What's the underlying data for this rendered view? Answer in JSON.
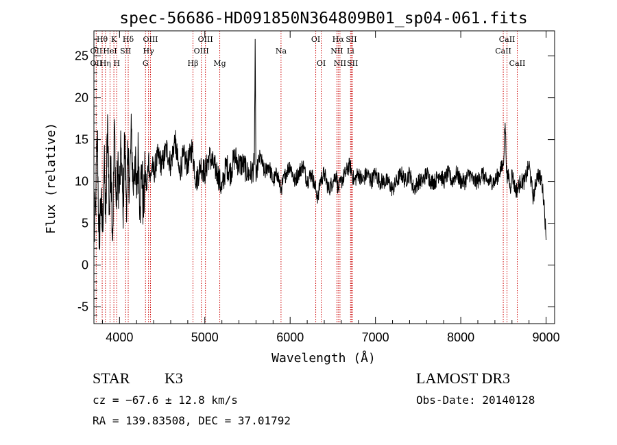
{
  "chart_data": {
    "type": "line",
    "title": "spec-56686-HD091850N364809B01_sp04-061.fits",
    "xlabel": "Wavelength (Å)",
    "ylabel": "Flux (relative)",
    "xlim": [
      3700,
      9100
    ],
    "ylim": [
      -7,
      28
    ],
    "x_ticks": [
      4000,
      5000,
      6000,
      7000,
      8000,
      9000
    ],
    "y_ticks": [
      -5,
      0,
      5,
      10,
      15,
      20,
      25
    ],
    "series": [
      {
        "name": "spectrum",
        "x": [
          3700,
          3720,
          3740,
          3760,
          3780,
          3800,
          3820,
          3840,
          3860,
          3880,
          3900,
          3920,
          3940,
          3960,
          3980,
          4000,
          4020,
          4040,
          4060,
          4080,
          4100,
          4120,
          4140,
          4160,
          4180,
          4200,
          4220,
          4240,
          4260,
          4280,
          4300,
          4320,
          4340,
          4360,
          4380,
          4400,
          4450,
          4500,
          4550,
          4600,
          4650,
          4700,
          4750,
          4800,
          4850,
          4900,
          4950,
          5000,
          5050,
          5100,
          5150,
          5200,
          5250,
          5300,
          5350,
          5400,
          5450,
          5500,
          5550,
          5580,
          5590,
          5600,
          5620,
          5650,
          5700,
          5750,
          5800,
          5850,
          5890,
          5950,
          6000,
          6050,
          6100,
          6150,
          6200,
          6250,
          6300,
          6330,
          6350,
          6400,
          6450,
          6500,
          6540,
          6563,
          6600,
          6650,
          6700,
          6750,
          6800,
          6850,
          6900,
          6950,
          7000,
          7050,
          7100,
          7150,
          7200,
          7250,
          7300,
          7350,
          7400,
          7450,
          7500,
          7550,
          7600,
          7650,
          7700,
          7750,
          7800,
          7850,
          7900,
          7950,
          8000,
          8050,
          8100,
          8150,
          8200,
          8250,
          8300,
          8350,
          8400,
          8450,
          8498,
          8520,
          8542,
          8560,
          8580,
          8600,
          8620,
          8640,
          8662,
          8700,
          8750,
          8800,
          8850,
          8900,
          8950,
          8980,
          9000
        ],
        "y": [
          3,
          7,
          16,
          2,
          8,
          4,
          12,
          5,
          18,
          6,
          13,
          3,
          17,
          7,
          11,
          9,
          14,
          6,
          15,
          8,
          12,
          10,
          16,
          9,
          13,
          8,
          14,
          7,
          12,
          6,
          11,
          9,
          13,
          10,
          12,
          11,
          13,
          12,
          14,
          12,
          15,
          11,
          13,
          12,
          14,
          10,
          12,
          11,
          13,
          12,
          11,
          9,
          12,
          11,
          13,
          12,
          12,
          11,
          11,
          12,
          27,
          10,
          12,
          13,
          11,
          12,
          10,
          11,
          9,
          11,
          12,
          10,
          11,
          12,
          10,
          11,
          9,
          8,
          10,
          11,
          9,
          10,
          11,
          9,
          10,
          11,
          12,
          10,
          11,
          10,
          11,
          10,
          11,
          10,
          10,
          10,
          9,
          10,
          11,
          10,
          11,
          9,
          10,
          10,
          11,
          10,
          10,
          11,
          10,
          11,
          10,
          11,
          10,
          10,
          11,
          10,
          10,
          11,
          10,
          10,
          10,
          11,
          12,
          17,
          10,
          11,
          9,
          11,
          10,
          9,
          9,
          10,
          10,
          12,
          8,
          11,
          10,
          7,
          3
        ]
      }
    ],
    "spectral_lines": {
      "row1": [
        {
          "label": "Hθ",
          "wavelength": 3797
        },
        {
          "label": "K",
          "wavelength": 3934
        },
        {
          "label": "Hδ",
          "wavelength": 4102
        },
        {
          "label": "OIII",
          "wavelength": 4363
        },
        {
          "label": "OIII",
          "wavelength": 5007
        },
        {
          "label": "OI",
          "wavelength": 6300
        },
        {
          "label": "Hα",
          "wavelength": 6563
        },
        {
          "label": "SII",
          "wavelength": 6717
        },
        {
          "label": "CaII",
          "wavelength": 8542
        }
      ],
      "row2": [
        {
          "label": "OII",
          "wavelength": 3727
        },
        {
          "label": "HeI",
          "wavelength": 3889
        },
        {
          "label": "SII",
          "wavelength": 4072
        },
        {
          "label": "Hγ",
          "wavelength": 4340
        },
        {
          "label": "OIII",
          "wavelength": 4959
        },
        {
          "label": "Na",
          "wavelength": 5893
        },
        {
          "label": "NII",
          "wavelength": 6548
        },
        {
          "label": "Li",
          "wavelength": 6708
        },
        {
          "label": "CaII",
          "wavelength": 8498
        }
      ],
      "row3": [
        {
          "label": "OII",
          "wavelength": 3727
        },
        {
          "label": "Hη",
          "wavelength": 3835
        },
        {
          "label": "H",
          "wavelength": 3968
        },
        {
          "label": "G",
          "wavelength": 4305
        },
        {
          "label": "Hβ",
          "wavelength": 4861
        },
        {
          "label": "Mg",
          "wavelength": 5175
        },
        {
          "label": "OI",
          "wavelength": 6364
        },
        {
          "label": "NII",
          "wavelength": 6584
        },
        {
          "label": "SII",
          "wavelength": 6731
        },
        {
          "label": "CaII",
          "wavelength": 8662
        }
      ]
    },
    "line_color": "#000000",
    "marker_color": "#cc0000"
  },
  "info": {
    "class": "STAR",
    "subclass": "K3",
    "survey": "LAMOST DR3",
    "cz": "cz = −67.6 ± 12.8 km/s",
    "obs_date": "Obs-Date: 20140128",
    "coords": "RA = 139.83508, DEC =  37.01792"
  }
}
